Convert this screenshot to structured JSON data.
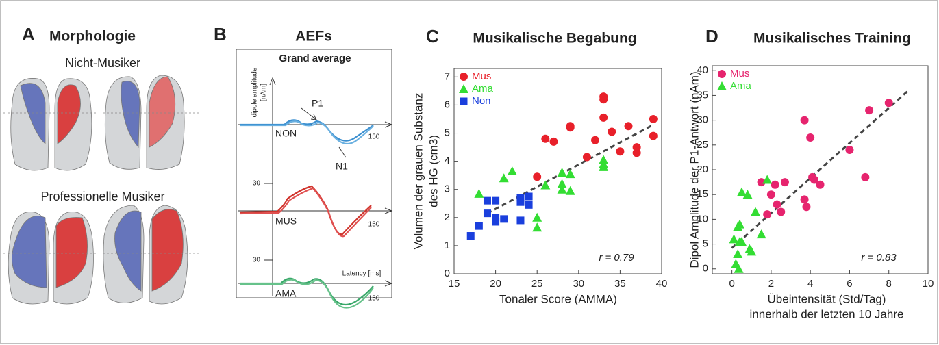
{
  "panel_a": {
    "letter": "A",
    "title": "Morphologie",
    "top_label": "Nicht-Musiker",
    "bottom_label": "Professionelle Musiker"
  },
  "panel_b": {
    "letter": "B",
    "title": "AEFs",
    "box_title": "Grand average",
    "y_axis_label": [
      "dipole amplitude",
      "[nAm]"
    ],
    "p1": "P1",
    "n1": "N1",
    "non": "NON",
    "mus": "MUS",
    "ama": "AMA",
    "scale_mus": 30,
    "scale_ama": 30,
    "end_non": 150,
    "end_mus": 150,
    "end_ama": 150,
    "x_axis_label": "Latency [ms]"
  },
  "chart_data": [
    {
      "type": "scatter",
      "letter": "C",
      "title": "Musikalische Begabung",
      "xlabel": [
        "Tonaler Score (AMMA)"
      ],
      "ylabel": [
        "Volumen der grauen Substanz",
        "des HG (cm3)"
      ],
      "annotation": "r = 0.79",
      "xlim": [
        15,
        40
      ],
      "xticks": [
        15,
        20,
        25,
        30,
        35,
        40
      ],
      "ylim": [
        0,
        7.3
      ],
      "yticks": [
        0,
        1,
        2,
        3,
        4,
        5,
        6,
        7
      ],
      "series": [
        {
          "name": "Mus",
          "color": "#e8202a",
          "marker": "circle",
          "x": [
            25,
            26,
            27,
            29,
            29,
            31,
            32,
            33,
            33,
            33,
            34,
            35,
            36,
            37,
            37,
            39,
            39
          ],
          "y": [
            3.45,
            4.8,
            4.7,
            5.2,
            5.25,
            4.15,
            4.75,
            6.3,
            6.2,
            5.55,
            5.05,
            4.35,
            5.25,
            4.5,
            4.3,
            5.5,
            4.9
          ]
        },
        {
          "name": "Ama",
          "color": "#33dd33",
          "marker": "triangle",
          "x": [
            18,
            21,
            22,
            25,
            25,
            26,
            28,
            28,
            28,
            29,
            29,
            33,
            33,
            33
          ],
          "y": [
            2.85,
            3.4,
            3.65,
            2.0,
            1.65,
            3.15,
            3.2,
            3.0,
            3.6,
            2.95,
            3.55,
            4.05,
            3.9,
            3.8
          ]
        },
        {
          "name": "Non",
          "color": "#1a3fdd",
          "marker": "square",
          "x": [
            17,
            18,
            19,
            19,
            20,
            20,
            20,
            21,
            23,
            23,
            23,
            24,
            24
          ],
          "y": [
            1.35,
            1.7,
            2.6,
            2.15,
            2.6,
            2.0,
            1.85,
            1.95,
            2.7,
            2.55,
            1.9,
            2.45,
            2.75
          ]
        }
      ],
      "trend": {
        "x": [
          19,
          39
        ],
        "y": [
          2.15,
          5.3
        ]
      }
    },
    {
      "type": "scatter",
      "letter": "D",
      "title": "Musikalisches Training",
      "xlabel": [
        "Übeintensität (Std/Tag)",
        "innerhalb der letzten 10 Jahre"
      ],
      "ylabel": [
        "Dipol Amplitude der P1-Antwort (nAm)"
      ],
      "annotation": "r = 0.83",
      "xlim": [
        -1,
        10
      ],
      "xticks": [
        0,
        2,
        4,
        6,
        8,
        10
      ],
      "ylim": [
        -1,
        41
      ],
      "yticks": [
        0,
        5,
        10,
        15,
        20,
        25,
        30,
        35,
        40
      ],
      "series": [
        {
          "name": "Mus",
          "color": "#e6246e",
          "marker": "circle",
          "x": [
            1.5,
            1.8,
            2.0,
            2.2,
            2.3,
            2.5,
            2.7,
            3.7,
            3.7,
            3.8,
            4.0,
            4.1,
            4.2,
            4.5,
            6.0,
            6.8,
            7.0,
            8.0
          ],
          "y": [
            17.5,
            11,
            15,
            17,
            13,
            11.5,
            17.5,
            30,
            14,
            12.5,
            26.5,
            18.5,
            18,
            17,
            24,
            18.5,
            32,
            33.5
          ]
        },
        {
          "name": "Ama",
          "color": "#33dd33",
          "marker": "triangle",
          "x": [
            0.1,
            0.2,
            0.3,
            0.3,
            0.35,
            0.4,
            0.4,
            0.5,
            0.5,
            0.8,
            0.9,
            1.0,
            1.2,
            1.5,
            1.8
          ],
          "y": [
            6,
            1,
            8.5,
            3,
            0,
            5.5,
            9,
            5.5,
            15.5,
            15,
            4,
            3.5,
            11.5,
            7,
            18
          ]
        }
      ],
      "trend": {
        "x": [
          0,
          9
        ],
        "y": [
          4.2,
          36
        ]
      }
    }
  ]
}
